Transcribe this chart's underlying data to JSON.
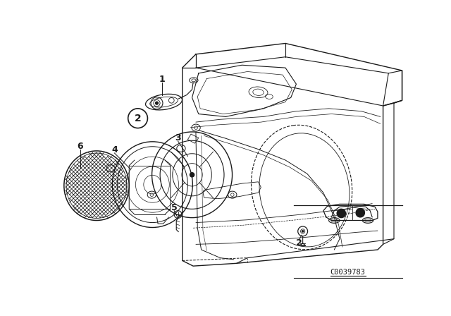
{
  "background_color": "#ffffff",
  "line_color": "#1a1a1a",
  "catalog_number": "C0039783",
  "part_labels": [
    "1",
    "2",
    "3",
    "4",
    "5",
    "6"
  ]
}
